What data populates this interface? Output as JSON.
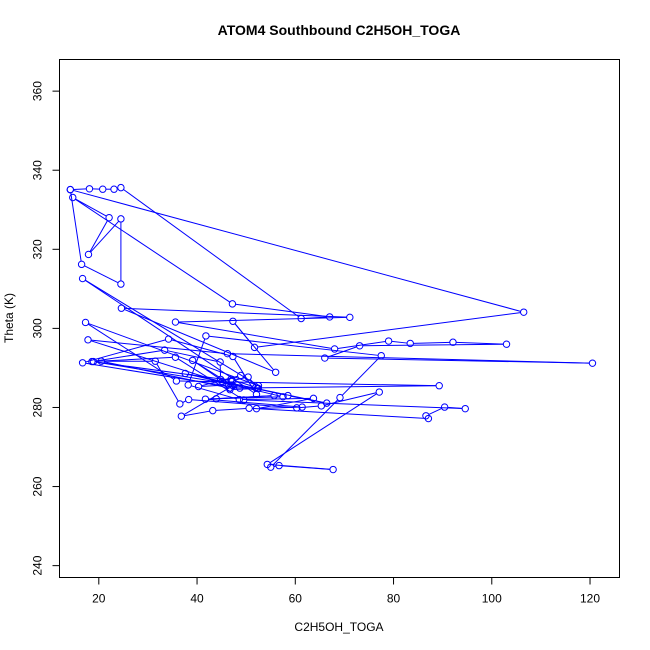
{
  "chart_data": {
    "type": "line",
    "title": "ATOM4 Southbound C2H5OH_TOGA",
    "xlabel": "C2H5OH_TOGA",
    "ylabel": "Theta (K)",
    "xlim": [
      12,
      126
    ],
    "ylim": [
      237,
      368
    ],
    "xticks": [
      20,
      40,
      60,
      80,
      100,
      120
    ],
    "yticks": [
      240,
      260,
      280,
      300,
      320,
      340,
      360
    ],
    "grid": false,
    "series": [
      {
        "color": "#0000ff",
        "markers": "open-circle",
        "points": [
          [
            14.2,
            335.1
          ],
          [
            18.1,
            335.3
          ],
          [
            20.8,
            335.2
          ],
          [
            23.1,
            335.2
          ],
          [
            24.5,
            335.6
          ],
          [
            61.2,
            302.5
          ],
          [
            67.0,
            302.9
          ],
          [
            47.2,
            306.2
          ],
          [
            14.7,
            333.1
          ],
          [
            22.1,
            328.0
          ],
          [
            17.9,
            318.7
          ],
          [
            24.5,
            327.7
          ],
          [
            24.5,
            311.2
          ],
          [
            16.5,
            316.2
          ],
          [
            14.2,
            335.1
          ],
          [
            106.5,
            304.1
          ],
          [
            51.7,
            295.2
          ],
          [
            47.3,
            301.8
          ],
          [
            56.0,
            288.9
          ],
          [
            24.6,
            305.1
          ],
          [
            71.1,
            302.8
          ],
          [
            35.6,
            301.6
          ],
          [
            68.0,
            294.8
          ],
          [
            79.0,
            296.8
          ],
          [
            83.4,
            296.2
          ],
          [
            92.1,
            296.5
          ],
          [
            103.0,
            296.0
          ],
          [
            73.1,
            295.6
          ],
          [
            66.0,
            292.5
          ],
          [
            120.5,
            291.2
          ],
          [
            46.2,
            293.6
          ],
          [
            17.8,
            297.1
          ],
          [
            48.7,
            284.9
          ],
          [
            16.7,
            291.3
          ],
          [
            34.2,
            297.3
          ],
          [
            47.3,
            292.9
          ],
          [
            52.1,
            283.3
          ],
          [
            16.7,
            312.6
          ],
          [
            52.5,
            285.5
          ],
          [
            17.3,
            301.5
          ],
          [
            35.8,
            286.7
          ],
          [
            89.3,
            285.5
          ],
          [
            46.6,
            284.9
          ],
          [
            20.5,
            291.7
          ],
          [
            31.5,
            291.7
          ],
          [
            36.5,
            280.9
          ],
          [
            38.3,
            282.0
          ],
          [
            60.3,
            279.9
          ],
          [
            65.3,
            280.4
          ],
          [
            77.1,
            283.9
          ],
          [
            54.3,
            265.6
          ],
          [
            67.7,
            264.3
          ],
          [
            56.7,
            265.3
          ],
          [
            55.0,
            264.9
          ],
          [
            69.1,
            282.5
          ],
          [
            77.5,
            293.1
          ],
          [
            41.8,
            298.1
          ],
          [
            38.2,
            285.7
          ],
          [
            48.6,
            282.0
          ],
          [
            63.7,
            282.3
          ],
          [
            52.1,
            279.7
          ],
          [
            61.4,
            280.1
          ],
          [
            41.7,
            282.1
          ],
          [
            55.7,
            283.0
          ],
          [
            43.9,
            282.2
          ],
          [
            57.5,
            282.7
          ],
          [
            37.6,
            288.6
          ],
          [
            58.5,
            283.0
          ],
          [
            66.4,
            281.1
          ],
          [
            45.1,
            286.6
          ],
          [
            48.9,
            288.1
          ],
          [
            40.3,
            285.3
          ],
          [
            46.4,
            285.7
          ],
          [
            39.1,
            291.9
          ],
          [
            47.3,
            285.5
          ],
          [
            36.8,
            277.8
          ],
          [
            43.2,
            279.2
          ],
          [
            50.6,
            279.8
          ],
          [
            87.1,
            277.2
          ],
          [
            86.6,
            277.9
          ],
          [
            90.4,
            280.1
          ],
          [
            94.6,
            279.7
          ],
          [
            49.5,
            281.9
          ],
          [
            35.6,
            292.7
          ],
          [
            18.6,
            291.6
          ],
          [
            33.4,
            294.5
          ],
          [
            44.7,
            291.5
          ],
          [
            44.8,
            287.1
          ],
          [
            46.9,
            287.1
          ],
          [
            52.0,
            285.1
          ],
          [
            52.5,
            284.8
          ],
          [
            50.4,
            287.7
          ],
          [
            47.2,
            286.8
          ],
          [
            18.9,
            291.6
          ],
          [
            52.3,
            284.8
          ],
          [
            46.7,
            284.5
          ]
        ]
      }
    ]
  }
}
